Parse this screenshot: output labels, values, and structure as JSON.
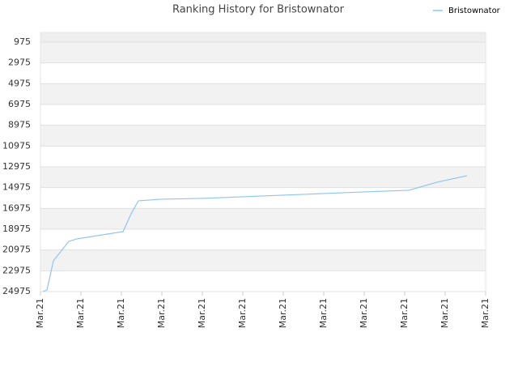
{
  "chart_data": {
    "type": "line",
    "title": "Ranking History for Bristownator",
    "xlim": [
      0,
      11
    ],
    "xticks": [
      {
        "value": 0,
        "label": "Mar.21"
      },
      {
        "value": 1,
        "label": "Mar.21"
      },
      {
        "value": 2,
        "label": "Mar.21"
      },
      {
        "value": 3,
        "label": "Mar.21"
      },
      {
        "value": 4,
        "label": "Mar.21"
      },
      {
        "value": 5,
        "label": "Mar.21"
      },
      {
        "value": 6,
        "label": "Mar.21"
      },
      {
        "value": 7,
        "label": "Mar.21"
      },
      {
        "value": 8,
        "label": "Mar.21"
      },
      {
        "value": 9,
        "label": "Mar.21"
      },
      {
        "value": 10,
        "label": "Mar.21"
      },
      {
        "value": 11,
        "label": "Mar.21"
      }
    ],
    "ylim": [
      24975,
      40
    ],
    "y_inverted": true,
    "yticks": [
      975,
      2975,
      4975,
      6975,
      8975,
      10975,
      12975,
      14975,
      16975,
      18975,
      20975,
      22975,
      24975
    ],
    "x": [
      0.06,
      0.16,
      0.32,
      0.7,
      0.9,
      2.04,
      2.24,
      2.42,
      3.0,
      4.0,
      5.0,
      6.0,
      7.0,
      8.0,
      9.1,
      9.8,
      10.54
    ],
    "series": [
      {
        "name": "Bristownator",
        "color": "#90c4ee",
        "values": [
          24975,
          24819,
          22011,
          20141,
          19907,
          19204,
          17490,
          16244,
          16088,
          16010,
          15855,
          15699,
          15543,
          15387,
          15231,
          14452,
          13829
        ]
      }
    ],
    "legend": "top-right",
    "banded_grid": true
  }
}
